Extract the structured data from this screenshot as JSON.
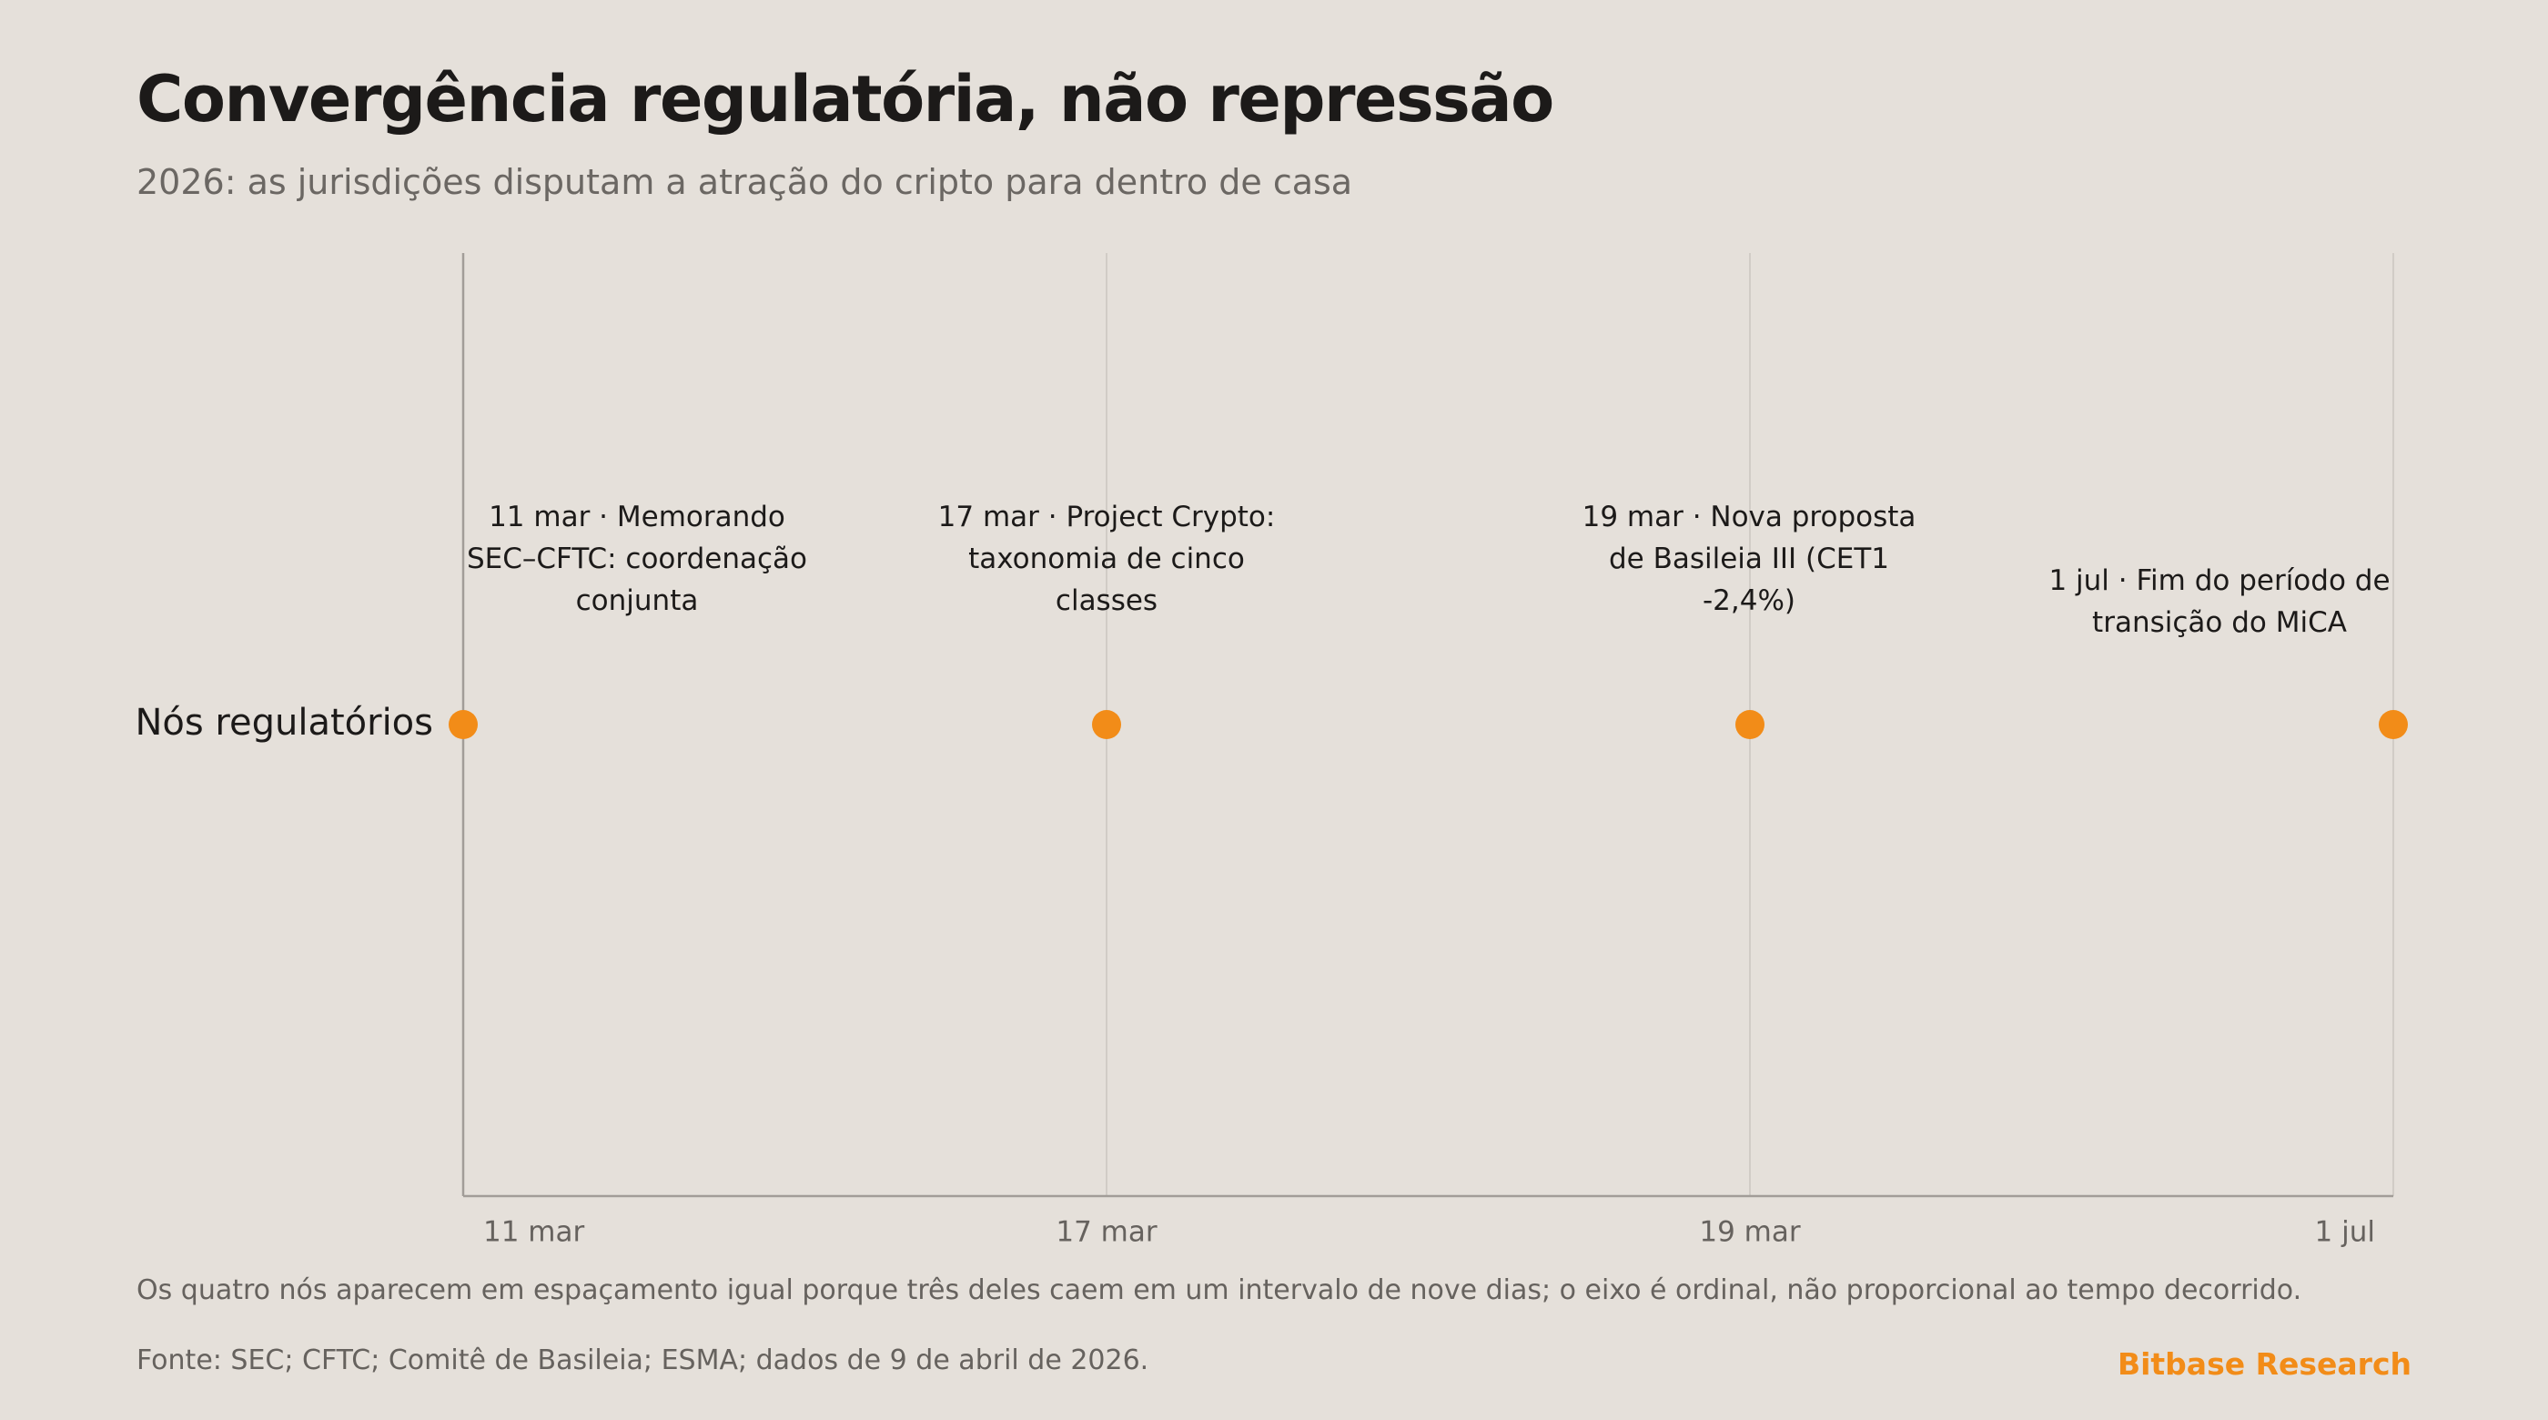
{
  "title": "Convergência regulatória, não repressão",
  "subtitle": "2026: as jurisdições disputam a atração do cripto para dentro de casa",
  "footnote": "Os quatro nós aparecem em espaçamento igual porque três deles caem em um intervalo de nove dias; o eixo é ordinal, não proporcional ao tempo decorrido.",
  "source": "Fonte: SEC; CFTC; Comitê de Basileia; ESMA; dados de 9 de abril de 2026.",
  "brand": "Bitbase Research",
  "colors": {
    "accent": "#f28c18",
    "background": "#e5e0da"
  },
  "chart_data": {
    "type": "scatter",
    "x_scale": "ordinal",
    "categories": [
      "11 mar",
      "17 mar",
      "19 mar",
      "1 jul"
    ],
    "series": [
      {
        "name": "Nós regulatórios",
        "values": [
          1,
          1,
          1,
          1
        ],
        "annotations": [
          "11 mar · Memorando SEC–CFTC: coordenação conjunta",
          "17 mar · Project Crypto: taxonomia de cinco classes",
          "19 mar · Nova proposta de Basileia III (CET1 -2,4%)",
          "1 jul · Fim do período de transição do MiCA"
        ]
      }
    ],
    "grid": true
  }
}
